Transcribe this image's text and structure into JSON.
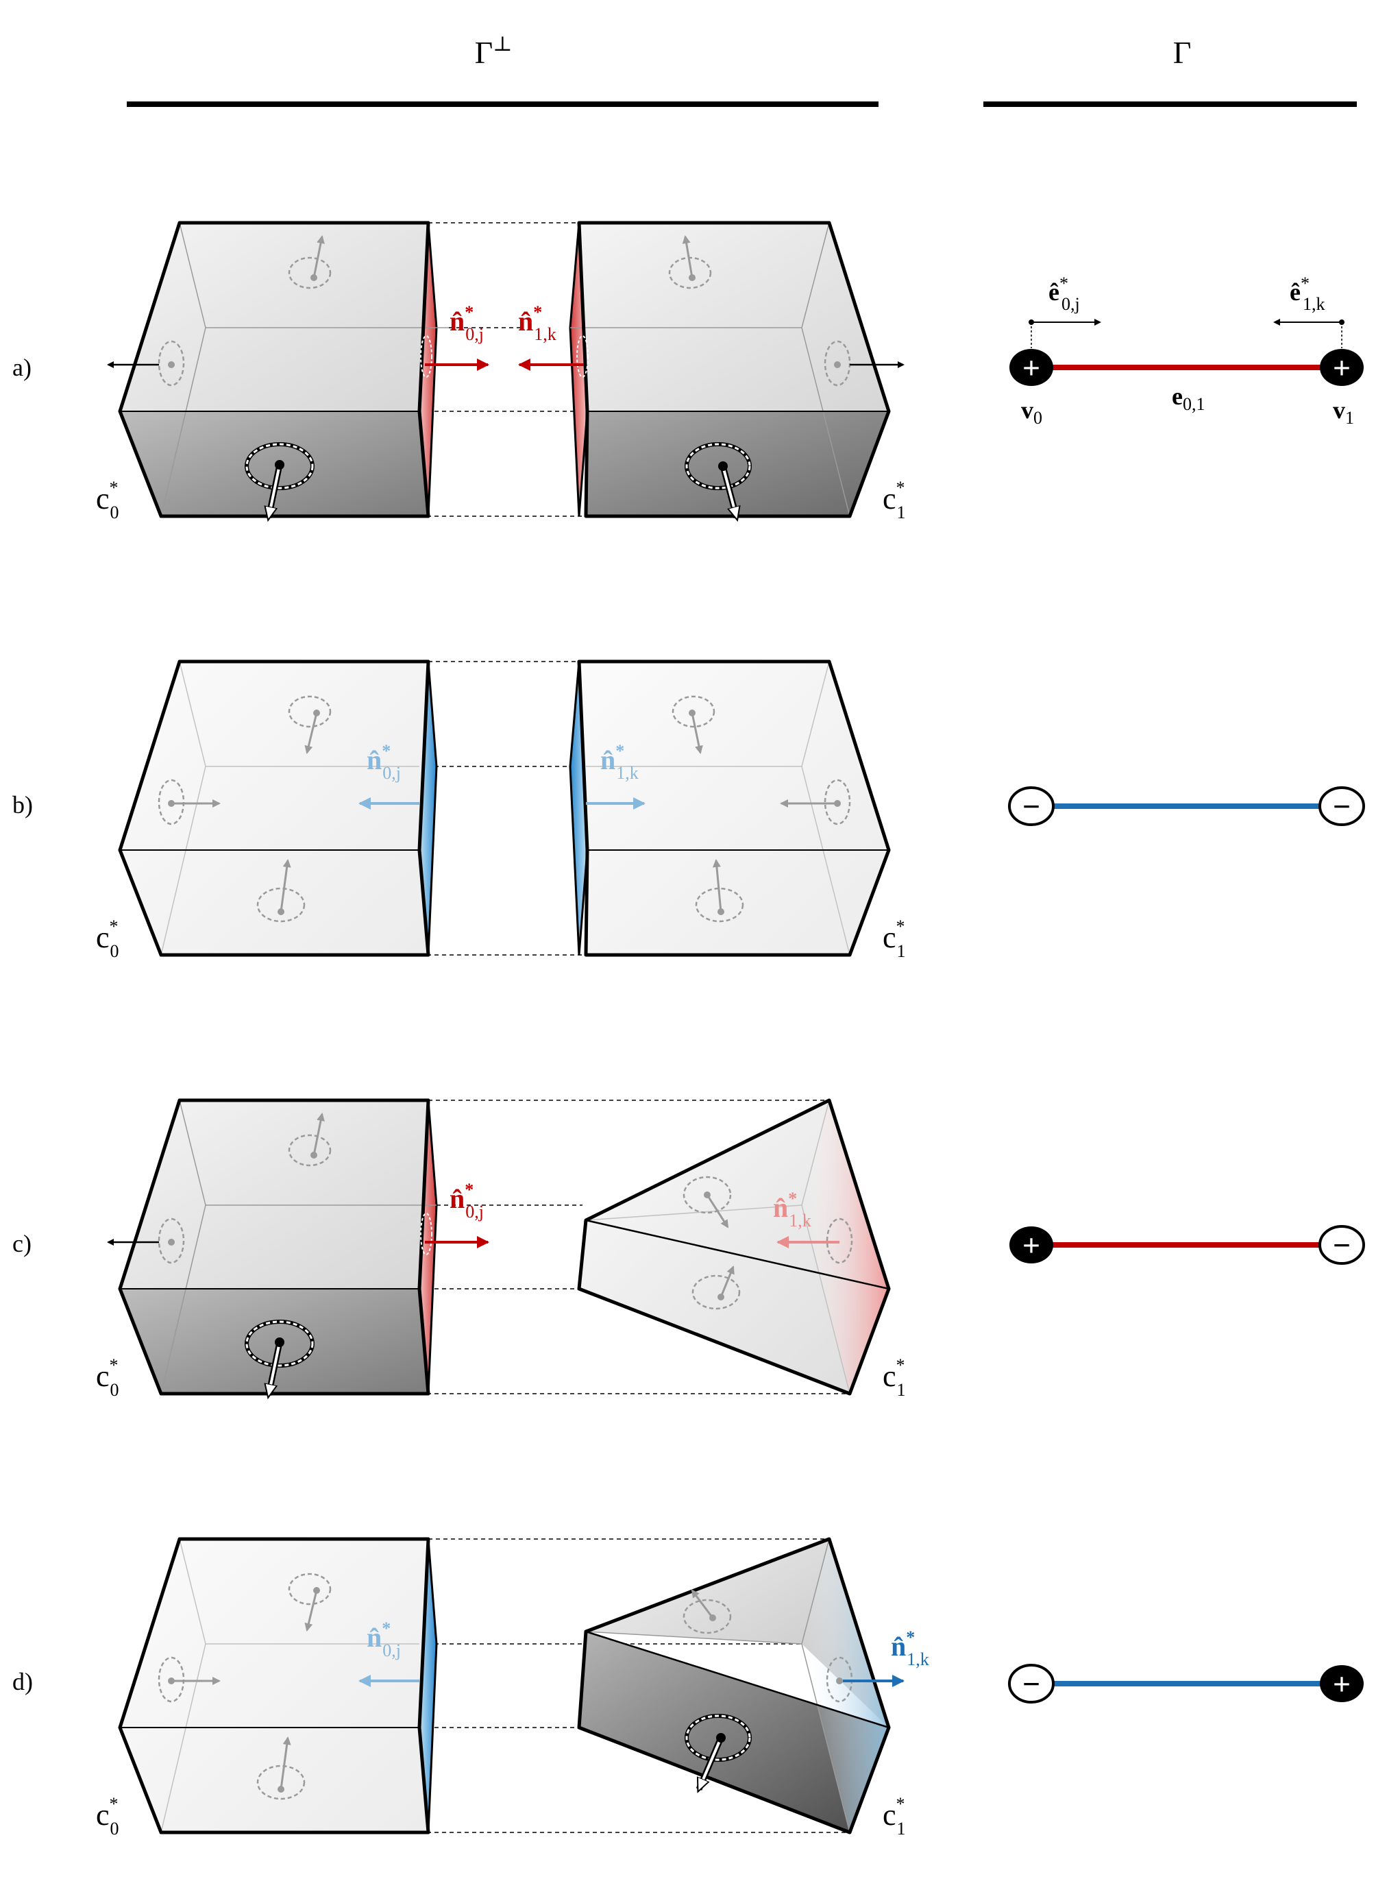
{
  "headers": {
    "left": "Γ",
    "left_sup": "⊥",
    "right": "Γ"
  },
  "cell_labels": {
    "c0_base": "c",
    "c0_sub": "0",
    "c1_base": "c",
    "c1_sub": "1",
    "star": "*"
  },
  "graph_labels": {
    "v0_base": "v",
    "v0_sub": "0",
    "v1_base": "v",
    "v1_sub": "1",
    "edge_base": "e",
    "edge_sub": "0,1",
    "e0j_base": "ê",
    "e0j_sub": "0,j",
    "e1k_base": "ê",
    "e1k_sub": "1,k",
    "star": "*"
  },
  "normal_labels": {
    "n_base": "n̂",
    "n0j_sub": "0,j",
    "n1k_sub": "1,k",
    "star": "*"
  },
  "rows": [
    {
      "label": "a)",
      "left_vertex_sign": "+",
      "right_vertex_sign": "+",
      "edge_color": "#c00000",
      "left_normal_color": "#c00000",
      "right_normal_color": "#c00000"
    },
    {
      "label": "b)",
      "left_vertex_sign": "−",
      "right_vertex_sign": "−",
      "edge_color": "#1f6fb5",
      "left_normal_color": "#86b8de",
      "right_normal_color": "#86b8de"
    },
    {
      "label": "c)",
      "left_vertex_sign": "+",
      "right_vertex_sign": "−",
      "edge_color": "#c00000",
      "left_normal_color": "#c00000",
      "right_normal_color": "#ea8c8c"
    },
    {
      "label": "d)",
      "left_vertex_sign": "−",
      "right_vertex_sign": "+",
      "edge_color": "#1f6fb5",
      "left_normal_color": "#86b8de",
      "right_normal_color": "#1f6fb5"
    }
  ],
  "colors": {
    "red": "#c00000",
    "blue": "#1f6fb5",
    "light_red": "#ea8c8c",
    "light_blue": "#86b8de",
    "dark_fill": "#8a8a8a",
    "light_fill": "#f3f3f3",
    "gray_icon": "#9a9a9a"
  }
}
